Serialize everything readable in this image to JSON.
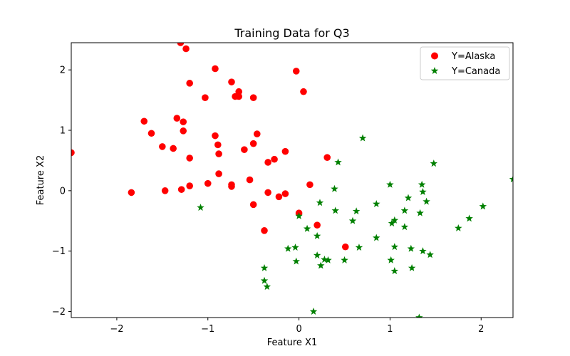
{
  "chart_data": {
    "type": "scatter",
    "title": "Training Data for Q3",
    "xlabel": "Feature X1",
    "ylabel": "Feature X2",
    "xlim": [
      -2.5,
      2.35
    ],
    "ylim": [
      -2.1,
      2.45
    ],
    "xticks": [
      -2,
      -1,
      0,
      1,
      2
    ],
    "yticks": [
      -2,
      -1,
      0,
      1,
      2
    ],
    "xtick_labels": [
      "−2",
      "−1",
      "0",
      "1",
      "2"
    ],
    "ytick_labels": [
      "−2",
      "−1",
      "0",
      "1",
      "2"
    ],
    "grid": false,
    "legend_position": "top-right",
    "series": [
      {
        "name": "Y=Alaska",
        "marker": "circle",
        "color": "#ff0000",
        "points": [
          [
            -2.5,
            0.63
          ],
          [
            -1.84,
            -0.03
          ],
          [
            -1.7,
            1.15
          ],
          [
            -1.62,
            0.95
          ],
          [
            -1.5,
            0.73
          ],
          [
            -1.47,
            0.0
          ],
          [
            -1.38,
            0.7
          ],
          [
            -1.34,
            1.2
          ],
          [
            -1.3,
            2.45
          ],
          [
            -1.29,
            0.02
          ],
          [
            -1.27,
            1.14
          ],
          [
            -1.27,
            0.99
          ],
          [
            -1.24,
            2.35
          ],
          [
            -1.2,
            1.78
          ],
          [
            -1.2,
            0.54
          ],
          [
            -1.2,
            0.08
          ],
          [
            -1.03,
            1.54
          ],
          [
            -1.0,
            0.12
          ],
          [
            -0.92,
            2.02
          ],
          [
            -0.92,
            0.91
          ],
          [
            -0.89,
            0.76
          ],
          [
            -0.88,
            0.61
          ],
          [
            -0.88,
            0.28
          ],
          [
            -0.74,
            1.8
          ],
          [
            -0.74,
            0.1
          ],
          [
            -0.74,
            0.07
          ],
          [
            -0.7,
            1.56
          ],
          [
            -0.66,
            1.64
          ],
          [
            -0.66,
            1.56
          ],
          [
            -0.6,
            0.68
          ],
          [
            -0.54,
            0.18
          ],
          [
            -0.5,
            1.54
          ],
          [
            -0.5,
            0.78
          ],
          [
            -0.5,
            -0.23
          ],
          [
            -0.46,
            0.94
          ],
          [
            -0.38,
            -0.66
          ],
          [
            -0.34,
            0.47
          ],
          [
            -0.34,
            -0.03
          ],
          [
            -0.27,
            0.52
          ],
          [
            -0.22,
            -0.1
          ],
          [
            -0.15,
            0.65
          ],
          [
            -0.15,
            -0.05
          ],
          [
            -0.03,
            1.98
          ],
          [
            0.0,
            -0.37
          ],
          [
            0.05,
            1.64
          ],
          [
            0.12,
            0.1
          ],
          [
            0.2,
            -0.57
          ],
          [
            0.31,
            0.55
          ],
          [
            0.51,
            -0.93
          ]
        ]
      },
      {
        "name": "Y=Canada",
        "marker": "star",
        "color": "#008000",
        "points": [
          [
            -1.08,
            -0.28
          ],
          [
            -0.38,
            -1.28
          ],
          [
            -0.38,
            -1.49
          ],
          [
            -0.35,
            -1.59
          ],
          [
            -0.12,
            -0.96
          ],
          [
            -0.04,
            -0.94
          ],
          [
            -0.03,
            -1.17
          ],
          [
            0.0,
            -0.42
          ],
          [
            0.09,
            -0.63
          ],
          [
            0.16,
            -2.0
          ],
          [
            0.2,
            -0.75
          ],
          [
            0.2,
            -1.07
          ],
          [
            0.23,
            -0.2
          ],
          [
            0.24,
            -1.24
          ],
          [
            0.28,
            -1.14
          ],
          [
            0.32,
            -1.15
          ],
          [
            0.39,
            0.03
          ],
          [
            0.4,
            -0.33
          ],
          [
            0.43,
            0.47
          ],
          [
            0.5,
            -1.15
          ],
          [
            0.59,
            -0.5
          ],
          [
            0.63,
            -0.34
          ],
          [
            0.66,
            -0.94
          ],
          [
            0.7,
            0.87
          ],
          [
            0.85,
            -0.78
          ],
          [
            0.85,
            -0.22
          ],
          [
            1.0,
            0.1
          ],
          [
            1.01,
            -1.15
          ],
          [
            1.02,
            -0.54
          ],
          [
            1.05,
            -0.49
          ],
          [
            1.05,
            -0.93
          ],
          [
            1.05,
            -1.33
          ],
          [
            1.16,
            -0.33
          ],
          [
            1.16,
            -0.6
          ],
          [
            1.2,
            -0.12
          ],
          [
            1.23,
            -0.96
          ],
          [
            1.24,
            -1.28
          ],
          [
            1.32,
            -2.1
          ],
          [
            1.33,
            -0.37
          ],
          [
            1.35,
            0.1
          ],
          [
            1.36,
            -0.02
          ],
          [
            1.36,
            -1.0
          ],
          [
            1.4,
            -0.18
          ],
          [
            1.44,
            -1.06
          ],
          [
            1.48,
            0.45
          ],
          [
            1.75,
            -0.62
          ],
          [
            1.87,
            -0.46
          ],
          [
            2.02,
            -0.26
          ],
          [
            2.35,
            0.19
          ]
        ]
      }
    ]
  }
}
